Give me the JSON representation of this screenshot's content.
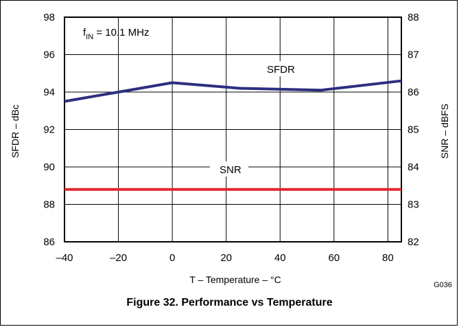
{
  "chart_data": {
    "type": "line",
    "x": [
      -40,
      -20,
      0,
      25,
      55,
      85
    ],
    "xlim": [
      -40,
      85
    ],
    "xticks": [
      "–40",
      "–20",
      "0",
      "20",
      "40",
      "60",
      "80"
    ],
    "xtick_values": [
      -40,
      -20,
      0,
      20,
      40,
      60,
      80
    ],
    "xlabel": "T – Temperature – °C",
    "ylabel_left": "SFDR – dBc",
    "ylim_left": [
      86,
      98
    ],
    "yticks_left": [
      "86",
      "88",
      "90",
      "92",
      "94",
      "96",
      "98"
    ],
    "ytick_values_left": [
      86,
      88,
      90,
      92,
      94,
      96,
      98
    ],
    "ylabel_right": "SNR – dBFS",
    "ylim_right": [
      82,
      88
    ],
    "yticks_right": [
      "82",
      "83",
      "84",
      "85",
      "86",
      "87",
      "88"
    ],
    "ytick_values_right": [
      82,
      83,
      84,
      85,
      86,
      87,
      88
    ],
    "grid": true,
    "annotation": {
      "prefix": "f",
      "subscript": "IN",
      "suffix": " = 10.1 MHz"
    },
    "series": [
      {
        "name": "SFDR",
        "axis": "left",
        "color": "#2b2f7f",
        "values": [
          93.5,
          94.0,
          94.5,
          94.2,
          94.1,
          94.6
        ]
      },
      {
        "name": "SNR",
        "axis": "right",
        "color": "#e0282e",
        "values": [
          83.4,
          83.4,
          83.4,
          83.4,
          83.4,
          83.4
        ]
      }
    ],
    "caption": "Figure 32. Performance vs Temperature",
    "figure_code": "G036"
  }
}
